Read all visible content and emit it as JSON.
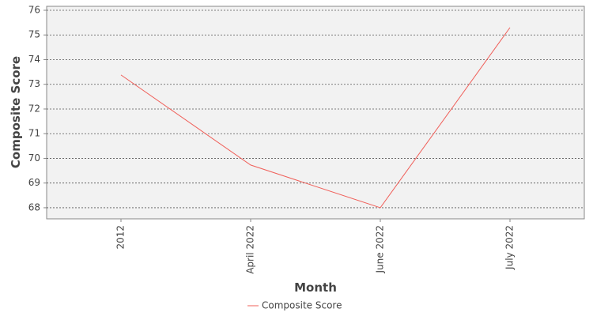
{
  "chart_data": {
    "type": "line",
    "x_label": "Month",
    "y_label": "Composite Score",
    "categories": [
      "2012",
      "April 2022",
      "June 2022",
      "July 2022"
    ],
    "series": [
      {
        "name": "Composite Score",
        "color": "#f0605a",
        "values": [
          73.38,
          69.73,
          68.0,
          75.3
        ]
      }
    ],
    "ylim": [
      67.55,
      76.16
    ],
    "yticks": [
      68,
      69,
      70,
      71,
      72,
      73,
      74,
      75,
      76
    ],
    "grid": true
  }
}
